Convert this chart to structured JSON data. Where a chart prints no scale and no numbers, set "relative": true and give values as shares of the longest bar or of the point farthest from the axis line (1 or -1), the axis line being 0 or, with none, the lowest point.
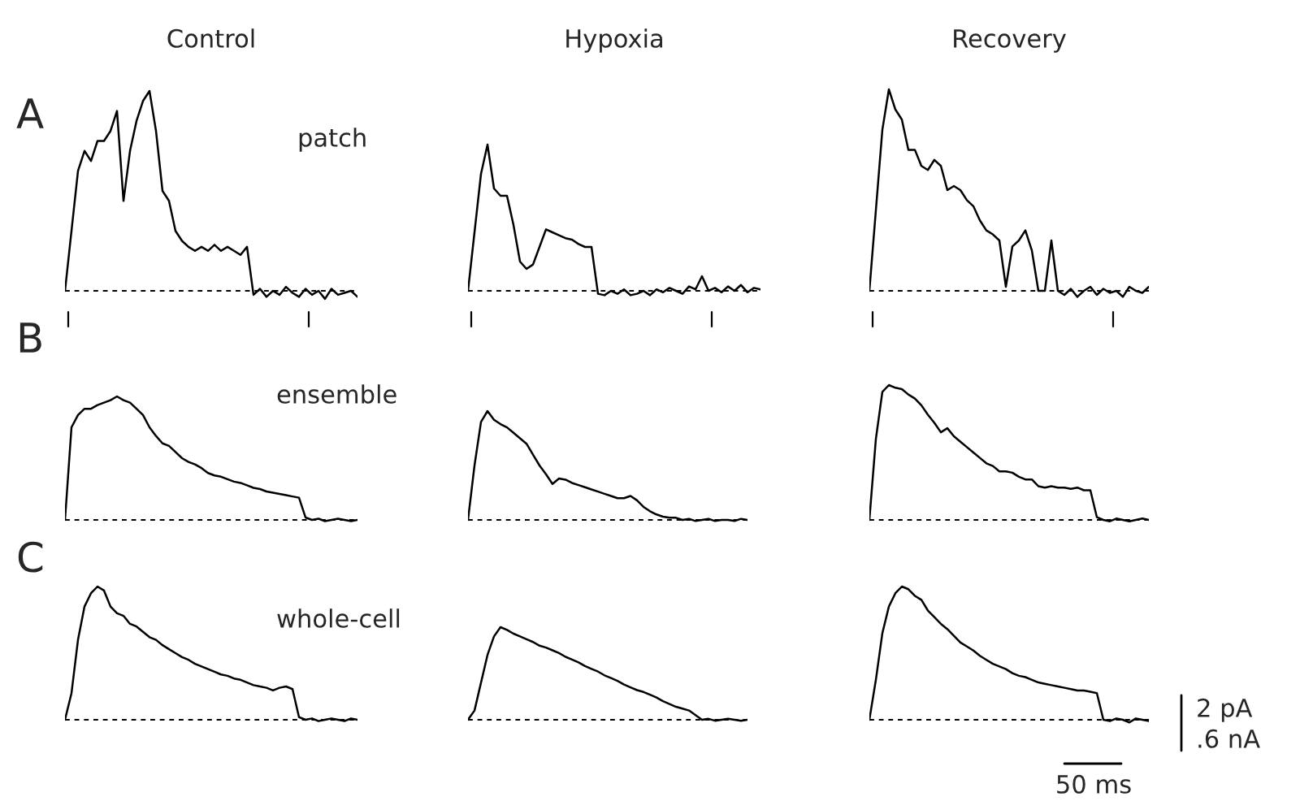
{
  "chart_data": [
    {
      "type": "line",
      "relative": true,
      "title": "Control",
      "annotations": [
        "A",
        "patch"
      ],
      "ref_lines": [
        {
          "axis": "y",
          "value": 0,
          "line_style": "dashed"
        }
      ],
      "categories": [
        null,
        null,
        null,
        null,
        null,
        null,
        null,
        null,
        null,
        null,
        null,
        null,
        null,
        null,
        null,
        null,
        null,
        null,
        null,
        null,
        null,
        null,
        null,
        null,
        null,
        null,
        null,
        null,
        null,
        null,
        null,
        null,
        null,
        null,
        null,
        null,
        null,
        null,
        null,
        null,
        null,
        null,
        null,
        null,
        null,
        null
      ],
      "series": [
        {
          "color": "#000000",
          "values": [
            0,
            0.3,
            0.6,
            0.7,
            0.65,
            0.75,
            0.75,
            0.8,
            0.9,
            0.45,
            0.7,
            0.85,
            0.95,
            1.0,
            0.8,
            0.5,
            0.45,
            0.3,
            0.25,
            0.22,
            0.2,
            0.22,
            0.2,
            0.23,
            0.2,
            0.22,
            0.2,
            0.18,
            0.22,
            -0.02,
            0.01,
            -0.03,
            0.0,
            -0.02,
            0.02,
            -0.01,
            -0.03,
            0.01,
            -0.02,
            0.0,
            -0.04,
            0.01,
            -0.02,
            -0.01,
            0.0,
            -0.03
          ]
        }
      ]
    },
    {
      "type": "line",
      "relative": true,
      "title": "Hypoxia",
      "ref_lines": [
        {
          "axis": "y",
          "value": 0,
          "line_style": "dashed"
        }
      ],
      "categories": [
        null,
        null,
        null,
        null,
        null,
        null,
        null,
        null,
        null,
        null,
        null,
        null,
        null,
        null,
        null,
        null,
        null,
        null,
        null,
        null,
        null,
        null,
        null,
        null,
        null,
        null,
        null,
        null,
        null,
        null,
        null,
        null,
        null,
        null,
        null,
        null,
        null,
        null,
        null,
        null,
        null,
        null,
        null,
        null,
        null,
        null
      ],
      "series": [
        {
          "color": "#000000",
          "values": [
            0,
            0.4,
            0.8,
            1.0,
            0.7,
            0.65,
            0.65,
            0.45,
            0.2,
            0.15,
            0.18,
            0.3,
            0.42,
            0.4,
            0.38,
            0.36,
            0.35,
            0.32,
            0.3,
            0.3,
            -0.02,
            -0.03,
            0.0,
            -0.02,
            0.01,
            -0.03,
            -0.02,
            0.0,
            -0.03,
            0.01,
            -0.01,
            0.02,
            0.0,
            -0.02,
            0.03,
            0.01,
            0.1,
            0.0,
            0.02,
            -0.01,
            0.03,
            0.0,
            0.04,
            -0.01,
            0.02,
            0.01
          ]
        }
      ]
    },
    {
      "type": "line",
      "relative": true,
      "title": "Recovery",
      "ref_lines": [
        {
          "axis": "y",
          "value": 0,
          "line_style": "dashed"
        }
      ],
      "categories": [
        null,
        null,
        null,
        null,
        null,
        null,
        null,
        null,
        null,
        null,
        null,
        null,
        null,
        null,
        null,
        null,
        null,
        null,
        null,
        null,
        null,
        null,
        null,
        null,
        null,
        null,
        null,
        null,
        null,
        null,
        null,
        null,
        null,
        null,
        null,
        null,
        null,
        null,
        null,
        null,
        null,
        null,
        null,
        null
      ],
      "series": [
        {
          "color": "#000000",
          "values": [
            0,
            0.4,
            0.8,
            1.0,
            0.9,
            0.85,
            0.7,
            0.7,
            0.62,
            0.6,
            0.65,
            0.62,
            0.5,
            0.52,
            0.5,
            0.45,
            0.42,
            0.35,
            0.3,
            0.28,
            0.25,
            0.02,
            0.22,
            0.25,
            0.3,
            0.2,
            0.0,
            0.0,
            0.25,
            0.0,
            -0.02,
            0.01,
            -0.03,
            0.0,
            0.02,
            -0.02,
            0.01,
            -0.01,
            0.0,
            -0.03,
            0.02,
            0.0,
            -0.01,
            0.02
          ]
        }
      ]
    },
    {
      "type": "line",
      "relative": true,
      "annotations": [
        "B",
        "ensemble"
      ],
      "ref_lines": [
        {
          "axis": "y",
          "value": 0,
          "line_style": "dashed"
        }
      ],
      "categories": [
        null,
        null,
        null,
        null,
        null,
        null,
        null,
        null,
        null,
        null,
        null,
        null,
        null,
        null,
        null,
        null,
        null,
        null,
        null,
        null,
        null,
        null,
        null,
        null,
        null,
        null,
        null,
        null,
        null,
        null,
        null,
        null,
        null,
        null,
        null,
        null,
        null,
        null,
        null,
        null,
        null,
        null,
        null,
        null,
        null,
        null
      ],
      "series": [
        {
          "color": "#000000",
          "values": [
            0,
            0.75,
            0.85,
            0.9,
            0.9,
            0.93,
            0.95,
            0.97,
            1.0,
            0.97,
            0.95,
            0.9,
            0.85,
            0.75,
            0.68,
            0.62,
            0.6,
            0.55,
            0.5,
            0.47,
            0.45,
            0.42,
            0.38,
            0.36,
            0.35,
            0.33,
            0.31,
            0.3,
            0.28,
            0.26,
            0.25,
            0.23,
            0.22,
            0.21,
            0.2,
            0.19,
            0.18,
            0.02,
            0.0,
            0.01,
            -0.01,
            0.0,
            0.01,
            0.0,
            -0.01,
            0.0
          ]
        }
      ]
    },
    {
      "type": "line",
      "relative": true,
      "ref_lines": [
        {
          "axis": "y",
          "value": 0,
          "line_style": "dashed"
        }
      ],
      "categories": [
        null,
        null,
        null,
        null,
        null,
        null,
        null,
        null,
        null,
        null,
        null,
        null,
        null,
        null,
        null,
        null,
        null,
        null,
        null,
        null,
        null,
        null,
        null,
        null,
        null,
        null,
        null,
        null,
        null,
        null,
        null,
        null,
        null,
        null,
        null,
        null,
        null,
        null,
        null,
        null,
        null,
        null,
        null,
        null
      ],
      "series": [
        {
          "color": "#000000",
          "values": [
            0,
            0.5,
            0.9,
            1.0,
            0.92,
            0.88,
            0.85,
            0.8,
            0.75,
            0.7,
            0.6,
            0.5,
            0.42,
            0.33,
            0.38,
            0.37,
            0.34,
            0.32,
            0.3,
            0.28,
            0.26,
            0.24,
            0.22,
            0.2,
            0.2,
            0.22,
            0.18,
            0.12,
            0.08,
            0.05,
            0.03,
            0.02,
            0.02,
            0.0,
            0.01,
            -0.01,
            0.0,
            0.01,
            -0.01,
            0.0,
            0.0,
            -0.01,
            0.01,
            0.0
          ]
        }
      ]
    },
    {
      "type": "line",
      "relative": true,
      "ref_lines": [
        {
          "axis": "y",
          "value": 0,
          "line_style": "dashed"
        }
      ],
      "categories": [
        null,
        null,
        null,
        null,
        null,
        null,
        null,
        null,
        null,
        null,
        null,
        null,
        null,
        null,
        null,
        null,
        null,
        null,
        null,
        null,
        null,
        null,
        null,
        null,
        null,
        null,
        null,
        null,
        null,
        null,
        null,
        null,
        null,
        null,
        null,
        null,
        null,
        null,
        null,
        null,
        null,
        null,
        null,
        null
      ],
      "series": [
        {
          "color": "#000000",
          "values": [
            0,
            0.6,
            0.95,
            1.0,
            0.98,
            0.97,
            0.93,
            0.9,
            0.85,
            0.78,
            0.72,
            0.65,
            0.68,
            0.62,
            0.58,
            0.54,
            0.5,
            0.46,
            0.42,
            0.4,
            0.36,
            0.36,
            0.35,
            0.32,
            0.3,
            0.3,
            0.25,
            0.24,
            0.25,
            0.24,
            0.24,
            0.23,
            0.24,
            0.22,
            0.22,
            0.02,
            0.0,
            -0.01,
            0.01,
            0.0,
            -0.01,
            0.0,
            0.01,
            0.0
          ]
        }
      ]
    },
    {
      "type": "line",
      "relative": true,
      "annotations": [
        "C",
        "whole-cell"
      ],
      "ref_lines": [
        {
          "axis": "y",
          "value": 0,
          "line_style": "dashed"
        }
      ],
      "categories": [
        null,
        null,
        null,
        null,
        null,
        null,
        null,
        null,
        null,
        null,
        null,
        null,
        null,
        null,
        null,
        null,
        null,
        null,
        null,
        null,
        null,
        null,
        null,
        null,
        null,
        null,
        null,
        null,
        null,
        null,
        null,
        null,
        null,
        null,
        null,
        null,
        null,
        null,
        null,
        null,
        null,
        null,
        null,
        null,
        null,
        null
      ],
      "series": [
        {
          "color": "#000000",
          "values": [
            0,
            0.2,
            0.6,
            0.85,
            0.95,
            1.0,
            0.97,
            0.85,
            0.8,
            0.78,
            0.72,
            0.7,
            0.66,
            0.62,
            0.6,
            0.56,
            0.53,
            0.5,
            0.47,
            0.45,
            0.42,
            0.4,
            0.38,
            0.36,
            0.34,
            0.33,
            0.31,
            0.3,
            0.28,
            0.26,
            0.25,
            0.24,
            0.22,
            0.24,
            0.25,
            0.23,
            0.02,
            0.0,
            0.01,
            -0.01,
            0.0,
            0.01,
            0.0,
            -0.01,
            0.01,
            0.0
          ]
        }
      ]
    },
    {
      "type": "line",
      "relative": true,
      "ref_lines": [
        {
          "axis": "y",
          "value": 0,
          "line_style": "dashed"
        }
      ],
      "categories": [
        null,
        null,
        null,
        null,
        null,
        null,
        null,
        null,
        null,
        null,
        null,
        null,
        null,
        null,
        null,
        null,
        null,
        null,
        null,
        null,
        null,
        null,
        null,
        null,
        null,
        null,
        null,
        null,
        null,
        null,
        null,
        null,
        null,
        null,
        null,
        null,
        null,
        null,
        null,
        null,
        null,
        null,
        null,
        null
      ],
      "series": [
        {
          "color": "#000000",
          "values": [
            0,
            0.1,
            0.4,
            0.7,
            0.9,
            1.0,
            0.97,
            0.93,
            0.9,
            0.87,
            0.84,
            0.8,
            0.78,
            0.75,
            0.72,
            0.68,
            0.65,
            0.62,
            0.58,
            0.55,
            0.52,
            0.48,
            0.45,
            0.42,
            0.38,
            0.35,
            0.32,
            0.3,
            0.27,
            0.24,
            0.2,
            0.17,
            0.14,
            0.12,
            0.1,
            0.05,
            0.0,
            0.01,
            -0.01,
            0.0,
            0.01,
            0.0,
            -0.01,
            0.0
          ]
        }
      ]
    },
    {
      "type": "line",
      "relative": true,
      "annotations": [
        "2 pA",
        ".6 nA",
        "50 ms"
      ],
      "ref_lines": [
        {
          "axis": "y",
          "value": 0,
          "line_style": "dashed"
        }
      ],
      "categories": [
        null,
        null,
        null,
        null,
        null,
        null,
        null,
        null,
        null,
        null,
        null,
        null,
        null,
        null,
        null,
        null,
        null,
        null,
        null,
        null,
        null,
        null,
        null,
        null,
        null,
        null,
        null,
        null,
        null,
        null,
        null,
        null,
        null,
        null,
        null,
        null,
        null,
        null,
        null,
        null,
        null,
        null,
        null,
        null
      ],
      "series": [
        {
          "color": "#000000",
          "values": [
            0,
            0.3,
            0.65,
            0.85,
            0.95,
            1.0,
            0.98,
            0.93,
            0.9,
            0.82,
            0.77,
            0.72,
            0.68,
            0.63,
            0.58,
            0.55,
            0.52,
            0.48,
            0.45,
            0.42,
            0.4,
            0.38,
            0.35,
            0.33,
            0.32,
            0.3,
            0.28,
            0.27,
            0.26,
            0.25,
            0.24,
            0.23,
            0.22,
            0.22,
            0.21,
            0.2,
            0.0,
            -0.01,
            0.01,
            0.0,
            -0.02,
            0.01,
            0.0,
            -0.01
          ]
        }
      ]
    }
  ]
}
